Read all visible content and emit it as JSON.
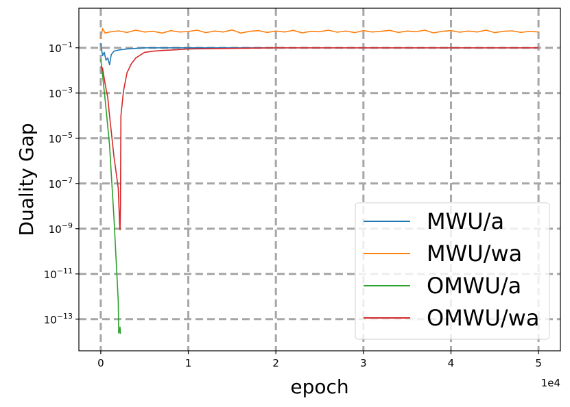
{
  "chart_data": {
    "type": "line",
    "xlabel": "epoch",
    "ylabel": "Duality Gap",
    "x_offset_label": "1e4",
    "y_scale": "log",
    "xlim": [
      -0.25,
      5.25
    ],
    "ylim_exponent": [
      -14.4,
      0.75
    ],
    "x_ticks": [
      {
        "value": 0,
        "label": "0"
      },
      {
        "value": 1,
        "label": "1"
      },
      {
        "value": 2,
        "label": "2"
      },
      {
        "value": 3,
        "label": "3"
      },
      {
        "value": 4,
        "label": "4"
      },
      {
        "value": 5,
        "label": "5"
      }
    ],
    "y_ticks": [
      {
        "exp": -1,
        "base": "10",
        "sup": "−1"
      },
      {
        "exp": -3,
        "base": "10",
        "sup": "−3"
      },
      {
        "exp": -5,
        "base": "10",
        "sup": "−5"
      },
      {
        "exp": -7,
        "base": "10",
        "sup": "−7"
      },
      {
        "exp": -9,
        "base": "10",
        "sup": "−9"
      },
      {
        "exp": -11,
        "base": "10",
        "sup": "−11"
      },
      {
        "exp": -13,
        "base": "10",
        "sup": "−13"
      }
    ],
    "grid": true,
    "legend_position": "lower-right",
    "series": [
      {
        "name": "MWU/a",
        "color": "#1f77b4",
        "x": [
          0,
          0.02,
          0.04,
          0.06,
          0.08,
          0.1,
          0.12,
          0.15,
          0.2,
          0.3,
          0.5,
          1.0,
          2.0,
          3.0,
          4.0,
          5.0
        ],
        "logy": [
          -0.8,
          -1.35,
          -1.2,
          -1.55,
          -1.45,
          -1.75,
          -1.3,
          -1.15,
          -1.1,
          -1.05,
          -1.0,
          -1.0,
          -1.0,
          -1.0,
          -1.0,
          -1.0
        ]
      },
      {
        "name": "MWU/wa",
        "color": "#ff7f0e",
        "x": [
          0,
          0.02,
          0.05,
          0.1,
          0.2,
          0.3,
          0.4,
          0.5,
          0.6,
          0.7,
          0.8,
          0.9,
          1.0,
          1.1,
          1.2,
          1.3,
          1.4,
          1.5,
          1.6,
          1.7,
          1.8,
          1.9,
          2.0,
          2.1,
          2.2,
          2.3,
          2.4,
          2.5,
          2.6,
          2.7,
          2.8,
          2.9,
          3.0,
          3.1,
          3.2,
          3.3,
          3.4,
          3.5,
          3.6,
          3.7,
          3.8,
          3.9,
          4.0,
          4.1,
          4.2,
          4.3,
          4.4,
          4.5,
          4.6,
          4.7,
          4.8,
          4.9,
          5.0
        ],
        "logy": [
          -0.6,
          -0.15,
          -0.35,
          -0.3,
          -0.25,
          -0.32,
          -0.22,
          -0.3,
          -0.27,
          -0.35,
          -0.24,
          -0.3,
          -0.28,
          -0.22,
          -0.33,
          -0.26,
          -0.3,
          -0.21,
          -0.35,
          -0.27,
          -0.24,
          -0.32,
          -0.26,
          -0.3,
          -0.23,
          -0.34,
          -0.27,
          -0.29,
          -0.22,
          -0.31,
          -0.26,
          -0.33,
          -0.24,
          -0.3,
          -0.27,
          -0.23,
          -0.32,
          -0.26,
          -0.29,
          -0.22,
          -0.34,
          -0.27,
          -0.24,
          -0.31,
          -0.26,
          -0.3,
          -0.22,
          -0.33,
          -0.27,
          -0.25,
          -0.32,
          -0.27,
          -0.3
        ]
      },
      {
        "name": "OMWU/a",
        "color": "#2ca02c",
        "x": [
          0,
          0.02,
          0.05,
          0.1,
          0.15,
          0.2,
          0.205,
          0.215,
          0.22,
          0.225
        ],
        "logy": [
          -1.5,
          -2.2,
          -3.3,
          -5.3,
          -8.5,
          -12.2,
          -13.62,
          -13.55,
          -13.35,
          -13.65
        ]
      },
      {
        "name": "OMWU/wa",
        "color": "#d62728",
        "x": [
          0,
          0.02,
          0.05,
          0.08,
          0.1,
          0.15,
          0.2,
          0.215,
          0.22,
          0.225,
          0.23,
          0.26,
          0.3,
          0.35,
          0.4,
          0.5,
          0.6,
          0.7,
          0.8,
          1.0,
          2.0,
          3.0,
          4.0,
          5.0
        ],
        "logy": [
          -1.8,
          -1.9,
          -2.6,
          -3.2,
          -4.0,
          -5.8,
          -7.2,
          -8.8,
          -9.05,
          -8.0,
          -4.0,
          -2.9,
          -2.1,
          -1.7,
          -1.45,
          -1.2,
          -1.15,
          -1.12,
          -1.1,
          -1.05,
          -1.0,
          -1.0,
          -1.0,
          -1.0
        ]
      }
    ]
  }
}
